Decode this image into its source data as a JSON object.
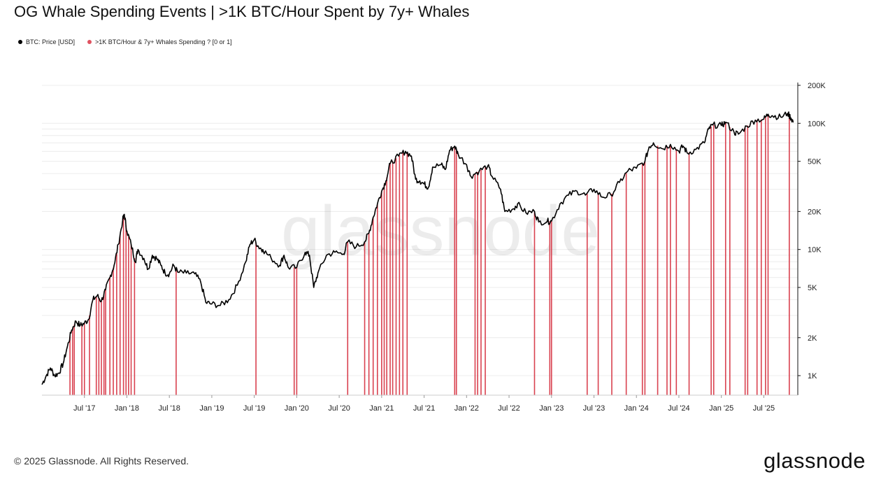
{
  "title": "OG Whale Spending Events | >1K BTC/Hour Spent by 7y+ Whales",
  "legend": [
    {
      "label": "BTC: Price [USD]",
      "color": "#000000"
    },
    {
      "label": ">1K BTC/Hour & 7y+ Whales Spending ? [0 or 1]",
      "color": "#e05260"
    }
  ],
  "watermark": "glassnode",
  "footer": "© 2025 Glassnode. All Rights Reserved.",
  "brand": "glassnode",
  "colors": {
    "price": "#000000",
    "events": "#d9414f",
    "grid": "#ececec"
  },
  "chart_data": {
    "type": "line",
    "scale": "log",
    "title": "OG Whale Spending Events | >1K BTC/Hour Spent by 7y+ Whales",
    "xlim": [
      2017.0,
      2025.9
    ],
    "ylim": [
      700,
      200000
    ],
    "yticks": [
      {
        "value": 1000,
        "label": "1K"
      },
      {
        "value": 2000,
        "label": "2K"
      },
      {
        "value": 5000,
        "label": "5K"
      },
      {
        "value": 10000,
        "label": "10K"
      },
      {
        "value": 20000,
        "label": "20K"
      },
      {
        "value": 50000,
        "label": "50K"
      },
      {
        "value": 100000,
        "label": "100K"
      },
      {
        "value": 200000,
        "label": "200K"
      }
    ],
    "xticks": [
      {
        "value": 2017.5,
        "label": "Jul '17"
      },
      {
        "value": 2018.0,
        "label": "Jan '18"
      },
      {
        "value": 2018.5,
        "label": "Jul '18"
      },
      {
        "value": 2019.0,
        "label": "Jan '19"
      },
      {
        "value": 2019.5,
        "label": "Jul '19"
      },
      {
        "value": 2020.0,
        "label": "Jan '20"
      },
      {
        "value": 2020.5,
        "label": "Jul '20"
      },
      {
        "value": 2021.0,
        "label": "Jan '21"
      },
      {
        "value": 2021.5,
        "label": "Jul '21"
      },
      {
        "value": 2022.0,
        "label": "Jan '22"
      },
      {
        "value": 2022.5,
        "label": "Jul '22"
      },
      {
        "value": 2023.0,
        "label": "Jan '23"
      },
      {
        "value": 2023.5,
        "label": "Jul '23"
      },
      {
        "value": 2024.0,
        "label": "Jan '24"
      },
      {
        "value": 2024.5,
        "label": "Jul '24"
      },
      {
        "value": 2025.0,
        "label": "Jan '25"
      },
      {
        "value": 2025.5,
        "label": "Jul '25"
      }
    ],
    "series": [
      {
        "name": "BTC: Price [USD]",
        "points": [
          [
            2017.0,
            850
          ],
          [
            2017.05,
            1000
          ],
          [
            2017.1,
            1150
          ],
          [
            2017.15,
            1000
          ],
          [
            2017.2,
            1050
          ],
          [
            2017.25,
            1250
          ],
          [
            2017.3,
            1700
          ],
          [
            2017.35,
            2300
          ],
          [
            2017.4,
            2700
          ],
          [
            2017.45,
            2500
          ],
          [
            2017.5,
            2600
          ],
          [
            2017.55,
            2800
          ],
          [
            2017.6,
            4000
          ],
          [
            2017.65,
            4300
          ],
          [
            2017.7,
            3900
          ],
          [
            2017.75,
            4800
          ],
          [
            2017.8,
            6000
          ],
          [
            2017.85,
            7500
          ],
          [
            2017.9,
            11000
          ],
          [
            2017.95,
            17000
          ],
          [
            2017.97,
            19000
          ],
          [
            2018.0,
            14000
          ],
          [
            2018.05,
            11000
          ],
          [
            2018.1,
            8000
          ],
          [
            2018.13,
            10000
          ],
          [
            2018.2,
            8500
          ],
          [
            2018.25,
            7000
          ],
          [
            2018.3,
            9000
          ],
          [
            2018.35,
            8500
          ],
          [
            2018.4,
            7500
          ],
          [
            2018.45,
            6500
          ],
          [
            2018.5,
            6400
          ],
          [
            2018.55,
            7500
          ],
          [
            2018.6,
            6600
          ],
          [
            2018.7,
            6500
          ],
          [
            2018.8,
            6400
          ],
          [
            2018.87,
            5500
          ],
          [
            2018.93,
            3800
          ],
          [
            2019.0,
            3700
          ],
          [
            2019.1,
            3600
          ],
          [
            2019.2,
            4000
          ],
          [
            2019.3,
            5200
          ],
          [
            2019.4,
            8000
          ],
          [
            2019.45,
            11000
          ],
          [
            2019.5,
            12000
          ],
          [
            2019.55,
            10500
          ],
          [
            2019.6,
            10000
          ],
          [
            2019.7,
            8500
          ],
          [
            2019.8,
            7500
          ],
          [
            2019.85,
            9000
          ],
          [
            2019.9,
            7200
          ],
          [
            2020.0,
            7200
          ],
          [
            2020.1,
            9500
          ],
          [
            2020.15,
            9000
          ],
          [
            2020.2,
            5000
          ],
          [
            2020.25,
            6500
          ],
          [
            2020.35,
            9000
          ],
          [
            2020.45,
            9500
          ],
          [
            2020.55,
            9200
          ],
          [
            2020.6,
            11500
          ],
          [
            2020.7,
            10500
          ],
          [
            2020.8,
            11500
          ],
          [
            2020.85,
            13500
          ],
          [
            2020.9,
            18000
          ],
          [
            2020.95,
            23000
          ],
          [
            2021.0,
            29000
          ],
          [
            2021.05,
            35000
          ],
          [
            2021.1,
            48000
          ],
          [
            2021.2,
            55000
          ],
          [
            2021.28,
            60000
          ],
          [
            2021.35,
            55000
          ],
          [
            2021.4,
            36000
          ],
          [
            2021.45,
            35000
          ],
          [
            2021.5,
            33000
          ],
          [
            2021.55,
            31000
          ],
          [
            2021.6,
            45000
          ],
          [
            2021.7,
            47000
          ],
          [
            2021.75,
            43000
          ],
          [
            2021.8,
            61000
          ],
          [
            2021.86,
            66000
          ],
          [
            2021.9,
            57000
          ],
          [
            2022.0,
            47000
          ],
          [
            2022.05,
            38000
          ],
          [
            2022.15,
            42000
          ],
          [
            2022.25,
            46000
          ],
          [
            2022.3,
            38000
          ],
          [
            2022.4,
            30000
          ],
          [
            2022.45,
            20000
          ],
          [
            2022.55,
            21000
          ],
          [
            2022.6,
            23000
          ],
          [
            2022.7,
            19500
          ],
          [
            2022.8,
            20000
          ],
          [
            2022.85,
            16500
          ],
          [
            2022.95,
            16700
          ],
          [
            2023.0,
            16800
          ],
          [
            2023.1,
            23000
          ],
          [
            2023.2,
            27000
          ],
          [
            2023.3,
            29000
          ],
          [
            2023.4,
            27000
          ],
          [
            2023.5,
            30000
          ],
          [
            2023.6,
            26000
          ],
          [
            2023.7,
            27000
          ],
          [
            2023.8,
            34000
          ],
          [
            2023.9,
            42000
          ],
          [
            2024.0,
            44000
          ],
          [
            2024.1,
            50000
          ],
          [
            2024.15,
            65000
          ],
          [
            2024.2,
            70000
          ],
          [
            2024.3,
            63000
          ],
          [
            2024.4,
            68000
          ],
          [
            2024.5,
            60000
          ],
          [
            2024.55,
            66000
          ],
          [
            2024.6,
            58000
          ],
          [
            2024.7,
            62000
          ],
          [
            2024.8,
            70000
          ],
          [
            2024.85,
            90000
          ],
          [
            2024.9,
            97000
          ],
          [
            2025.0,
            96000
          ],
          [
            2025.05,
            102000
          ],
          [
            2025.15,
            85000
          ],
          [
            2025.2,
            82000
          ],
          [
            2025.3,
            95000
          ],
          [
            2025.4,
            106000
          ],
          [
            2025.5,
            108000
          ],
          [
            2025.55,
            118000
          ],
          [
            2025.6,
            115000
          ],
          [
            2025.7,
            112000
          ],
          [
            2025.78,
            120000
          ],
          [
            2025.82,
            110000
          ],
          [
            2025.85,
            102000
          ]
        ]
      },
      {
        "name": ">1K BTC/Hour & 7y+ Whales Spending ? [0 or 1]",
        "event_dates": [
          2017.33,
          2017.36,
          2017.38,
          2017.47,
          2017.5,
          2017.56,
          2017.64,
          2017.67,
          2017.7,
          2017.73,
          2017.75,
          2017.8,
          2017.84,
          2017.88,
          2017.92,
          2017.96,
          2017.99,
          2018.02,
          2018.05,
          2018.09,
          2018.58,
          2019.52,
          2019.97,
          2020.0,
          2020.6,
          2020.8,
          2020.85,
          2020.9,
          2020.95,
          2021.0,
          2021.03,
          2021.06,
          2021.1,
          2021.13,
          2021.17,
          2021.21,
          2021.25,
          2021.3,
          2021.86,
          2021.88,
          2022.1,
          2022.13,
          2022.17,
          2022.22,
          2022.8,
          2022.98,
          2023.0,
          2023.42,
          2023.55,
          2023.71,
          2023.88,
          2024.07,
          2024.1,
          2024.25,
          2024.36,
          2024.4,
          2024.47,
          2024.62,
          2024.88,
          2024.91,
          2025.05,
          2025.1,
          2025.28,
          2025.31,
          2025.42,
          2025.47,
          2025.52,
          2025.55,
          2025.8
        ]
      }
    ]
  }
}
